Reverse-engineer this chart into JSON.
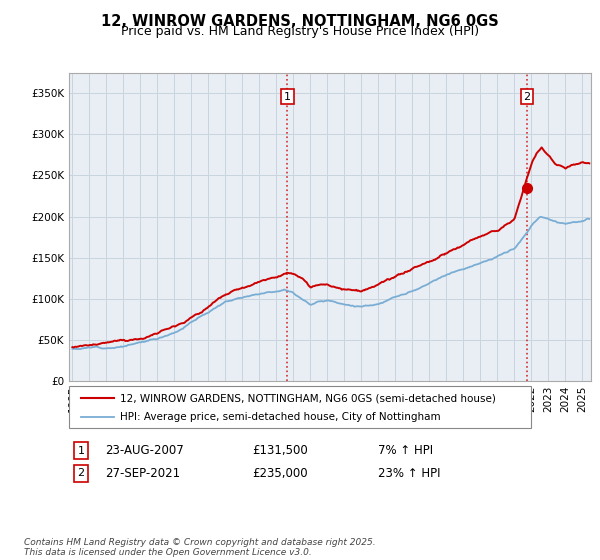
{
  "title": "12, WINROW GARDENS, NOTTINGHAM, NG6 0GS",
  "subtitle": "Price paid vs. HM Land Registry's House Price Index (HPI)",
  "ytick_values": [
    0,
    50000,
    100000,
    150000,
    200000,
    250000,
    300000,
    350000
  ],
  "ylim": [
    0,
    375000
  ],
  "xlim_start": 1994.8,
  "xlim_end": 2025.5,
  "legend_entry1": "12, WINROW GARDENS, NOTTINGHAM, NG6 0GS (semi-detached house)",
  "legend_entry2": "HPI: Average price, semi-detached house, City of Nottingham",
  "sale1_label": "1",
  "sale1_date": "23-AUG-2007",
  "sale1_price": "£131,500",
  "sale1_hpi": "7% ↑ HPI",
  "sale1_x": 2007.64,
  "sale1_y": 131500,
  "sale2_label": "2",
  "sale2_date": "27-SEP-2021",
  "sale2_price": "£235,000",
  "sale2_hpi": "23% ↑ HPI",
  "sale2_x": 2021.74,
  "sale2_y": 235000,
  "footer": "Contains HM Land Registry data © Crown copyright and database right 2025.\nThis data is licensed under the Open Government Licence v3.0.",
  "red_color": "#cc0000",
  "blue_color": "#7aadd4",
  "plot_bg": "#e8eef4",
  "background_color": "#ffffff",
  "grid_color": "#c8d4de"
}
